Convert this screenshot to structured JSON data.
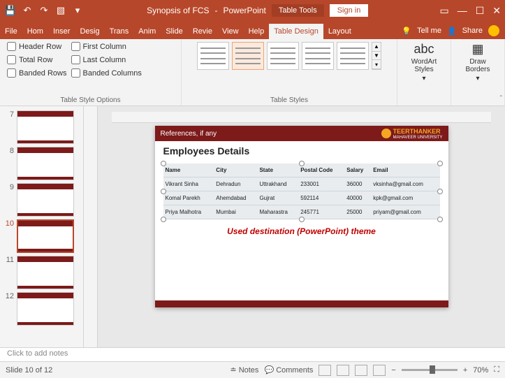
{
  "titlebar": {
    "doc_title": "Synopsis of FCS",
    "app_name": "PowerPoint",
    "context_tool": "Table Tools",
    "signin": "Sign in"
  },
  "tabs": {
    "items": [
      "File",
      "Home",
      "Insert",
      "Design",
      "Transitions",
      "Animations",
      "Slide Show",
      "Review",
      "View",
      "Help",
      "Table Design",
      "Layout"
    ],
    "short": [
      "File",
      "Hom",
      "Inser",
      "Desig",
      "Trans",
      "Anim",
      "Slide",
      "Revie",
      "View",
      "Help",
      "Table Design",
      "Layout"
    ],
    "active_index": 10,
    "tellme": "Tell me",
    "share": "Share"
  },
  "ribbon": {
    "options": {
      "label": "Table Style Options",
      "col1": [
        "Header Row",
        "Total Row",
        "Banded Rows"
      ],
      "col2": [
        "First Column",
        "Last Column",
        "Banded Columns"
      ]
    },
    "styles_label": "Table Styles",
    "wordart": "WordArt Styles",
    "borders": "Draw Borders"
  },
  "thumbs": {
    "visible": [
      7,
      8,
      9,
      10,
      11,
      12
    ],
    "selected": 10
  },
  "slide": {
    "breadcrumb": "References, if any",
    "university": {
      "name": "TEERTHANKER",
      "sub": "MAHAVEER UNIVERSITY"
    },
    "title": "Employees Details",
    "table": {
      "columns": [
        "Name",
        "City",
        "State",
        "Postal Code",
        "Salary",
        "Email"
      ],
      "rows": [
        [
          "Vikrant Sinha",
          "Dehradun",
          "Uttrakhand",
          "233001",
          "36000",
          "vksinha@gmail.com"
        ],
        [
          "Komal Parekh",
          "Ahemdabad",
          "Gujrat",
          "592114",
          "40000",
          "kpk@gmail.com"
        ],
        [
          "Priya Malhotra",
          "Mumbai",
          "Maharastra",
          "245771",
          "25000",
          "priyam@gmail.com"
        ]
      ],
      "bg": "#e8ecef"
    },
    "caption": "Used destination (PowerPoint) theme"
  },
  "notes_placeholder": "Click to add notes",
  "status": {
    "slide_counter": "Slide 10 of 12",
    "notes": "Notes",
    "comments": "Comments",
    "zoom_pct": "70%"
  }
}
